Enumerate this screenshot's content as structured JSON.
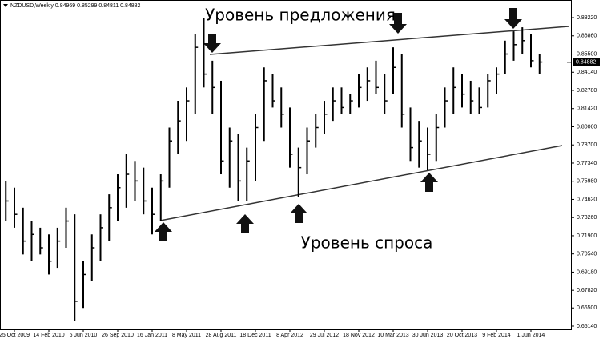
{
  "chart_data": {
    "type": "hlc",
    "title": "NZDUSD,Weekly  0.84969 0.85299 0.84811 0.84882",
    "annotations": [
      "Уровень предложения",
      "Уровень спроса"
    ],
    "color": "#000000",
    "last_price": 0.84882,
    "categories": [
      null,
      "25 Oct 2009",
      null,
      null,
      null,
      "14 Feb 2010",
      null,
      null,
      null,
      "6 Jun 2010",
      null,
      null,
      null,
      "26 Sep 2010",
      null,
      null,
      null,
      "16 Jan 2011",
      null,
      null,
      null,
      "8 May 2011",
      null,
      null,
      null,
      "28 Aug 2011",
      null,
      null,
      null,
      "18 Dec 2011",
      null,
      null,
      null,
      "8 Apr 2012",
      null,
      null,
      null,
      "29 Jul 2012",
      null,
      null,
      null,
      "18 Nov 2012",
      null,
      null,
      null,
      "10 Mar 2013",
      null,
      null,
      null,
      "30 Jun 2013",
      null,
      null,
      null,
      "20 Oct 2013",
      null,
      null,
      null,
      "9 Feb 2014",
      null,
      null,
      null,
      "1 Jun 2014",
      null
    ],
    "high": [
      0.76,
      0.755,
      0.74,
      0.73,
      0.725,
      0.72,
      0.725,
      0.74,
      0.735,
      0.7,
      0.72,
      0.735,
      0.75,
      0.765,
      0.78,
      0.775,
      0.77,
      0.755,
      0.765,
      0.8,
      0.82,
      0.83,
      0.87,
      0.882,
      0.85,
      0.835,
      0.8,
      0.795,
      0.785,
      0.81,
      0.845,
      0.84,
      0.83,
      0.815,
      0.785,
      0.8,
      0.81,
      0.82,
      0.83,
      0.83,
      0.825,
      0.84,
      0.845,
      0.85,
      0.84,
      0.86,
      0.855,
      0.815,
      0.805,
      0.8,
      0.81,
      0.83,
      0.845,
      0.84,
      0.835,
      0.83,
      0.84,
      0.845,
      0.865,
      0.872,
      0.875,
      0.87,
      0.855
    ],
    "low": [
      0.73,
      0.725,
      0.705,
      0.7,
      0.705,
      0.69,
      0.695,
      0.71,
      0.655,
      0.665,
      0.685,
      0.7,
      0.715,
      0.73,
      0.74,
      0.745,
      0.735,
      0.72,
      0.73,
      0.755,
      0.78,
      0.79,
      0.81,
      0.83,
      0.81,
      0.765,
      0.755,
      0.745,
      0.745,
      0.76,
      0.79,
      0.815,
      0.8,
      0.77,
      0.748,
      0.765,
      0.785,
      0.795,
      0.805,
      0.81,
      0.81,
      0.815,
      0.82,
      0.825,
      0.81,
      0.825,
      0.8,
      0.775,
      0.77,
      0.768,
      0.775,
      0.8,
      0.81,
      0.815,
      0.81,
      0.81,
      0.815,
      0.825,
      0.84,
      0.85,
      0.855,
      0.845,
      0.84
    ],
    "close": [
      0.745,
      0.735,
      0.715,
      0.72,
      0.71,
      0.7,
      0.715,
      0.73,
      0.67,
      0.69,
      0.71,
      0.725,
      0.74,
      0.755,
      0.765,
      0.76,
      0.745,
      0.735,
      0.76,
      0.79,
      0.805,
      0.82,
      0.86,
      0.84,
      0.83,
      0.775,
      0.79,
      0.76,
      0.775,
      0.8,
      0.835,
      0.82,
      0.81,
      0.78,
      0.77,
      0.79,
      0.8,
      0.81,
      0.82,
      0.815,
      0.82,
      0.83,
      0.835,
      0.83,
      0.82,
      0.845,
      0.81,
      0.785,
      0.79,
      0.78,
      0.8,
      0.82,
      0.83,
      0.825,
      0.82,
      0.815,
      0.835,
      0.84,
      0.855,
      0.862,
      0.865,
      0.85,
      0.849
    ],
    "ylim": [
      0.649,
      0.8882
    ],
    "yticks": [
      {
        "value": 0.8822,
        "label": "0.88220"
      },
      {
        "value": 0.8686,
        "label": "0.86860"
      },
      {
        "value": 0.855,
        "label": "0.85500"
      },
      {
        "value": 0.8414,
        "label": "0.84140"
      },
      {
        "value": 0.8278,
        "label": "0.82780"
      },
      {
        "value": 0.8142,
        "label": "0.81420"
      },
      {
        "value": 0.8006,
        "label": "0.80060"
      },
      {
        "value": 0.787,
        "label": "0.78700"
      },
      {
        "value": 0.7734,
        "label": "0.77340"
      },
      {
        "value": 0.7598,
        "label": "0.75980"
      },
      {
        "value": 0.7462,
        "label": "0.74620"
      },
      {
        "value": 0.7326,
        "label": "0.73260"
      },
      {
        "value": 0.719,
        "label": "0.71900"
      },
      {
        "value": 0.7054,
        "label": "0.70540"
      },
      {
        "value": 0.6918,
        "label": "0.69180"
      },
      {
        "value": 0.6782,
        "label": "0.67820"
      },
      {
        "value": 0.665,
        "label": "0.66500"
      },
      {
        "value": 0.6514,
        "label": "0.65140"
      }
    ]
  }
}
